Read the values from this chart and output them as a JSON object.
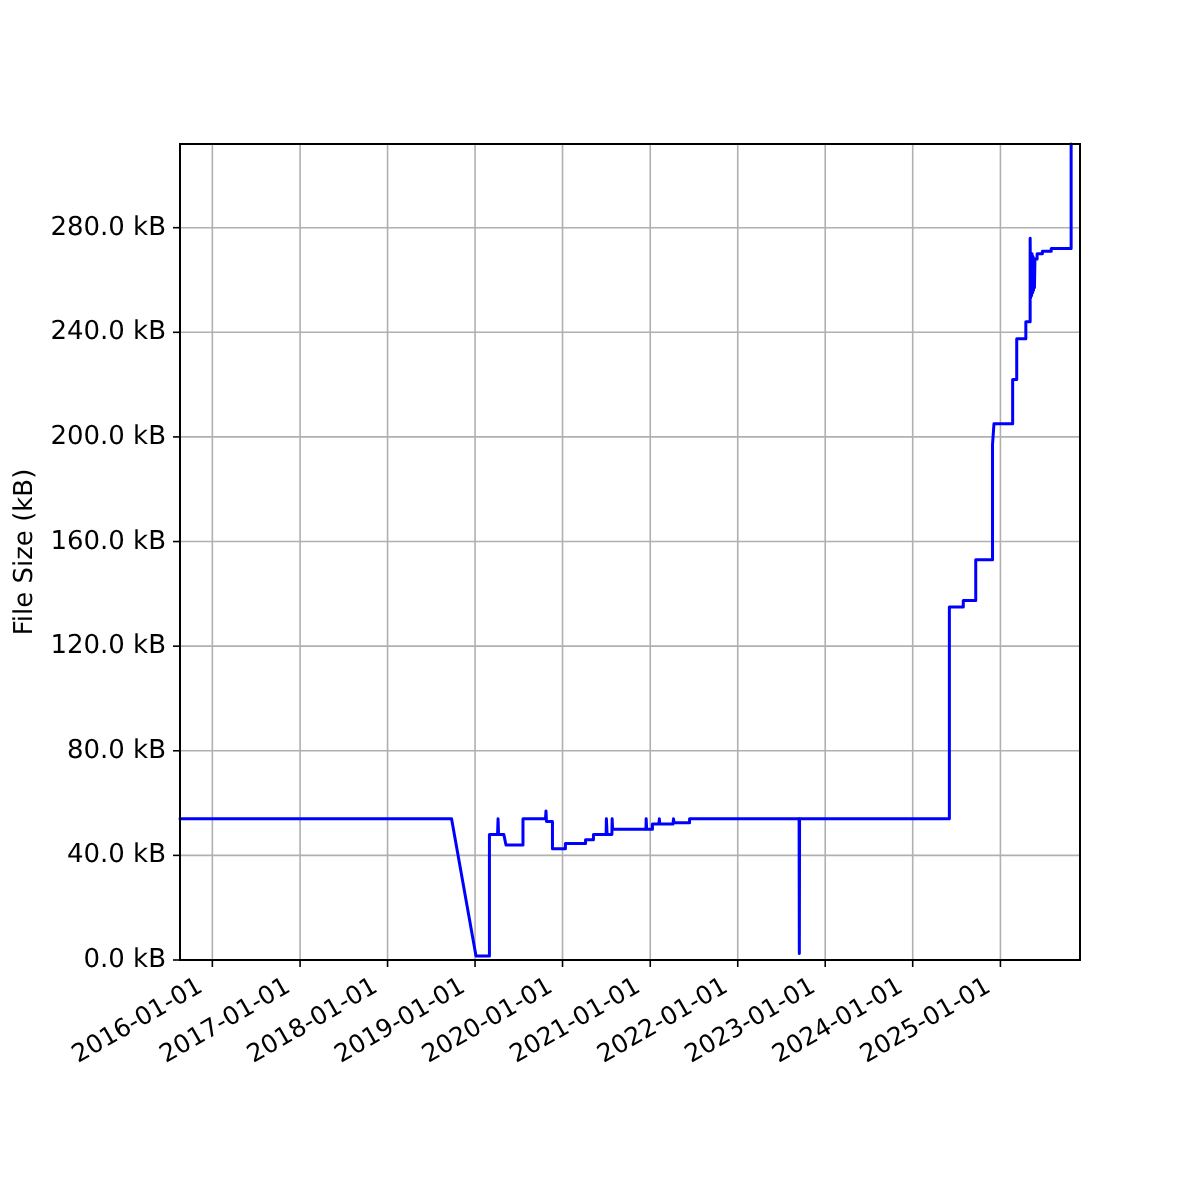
{
  "chart_data": {
    "type": "line",
    "ylabel": "File Size (kB)",
    "x": [
      "2015-08-19",
      "2018-09-25",
      "2019-01-05",
      "2019-03-02",
      "2019-03-02",
      "2019-04-05",
      "2019-04-07",
      "2019-04-09",
      "2019-05-01",
      "2019-05-10",
      "2019-07-20",
      "2019-07-20",
      "2019-10-22",
      "2019-10-24",
      "2019-10-26",
      "2019-11-20",
      "2019-11-20",
      "2020-01-13",
      "2020-01-13",
      "2020-04-06",
      "2020-04-06",
      "2020-05-09",
      "2020-05-09",
      "2020-07-01",
      "2020-07-02",
      "2020-07-05",
      "2020-07-25",
      "2020-07-26",
      "2020-07-28",
      "2020-12-14",
      "2020-12-15",
      "2020-12-17",
      "2021-01-10",
      "2021-01-10",
      "2021-02-06",
      "2021-02-08",
      "2021-02-10",
      "2021-04-06",
      "2021-04-08",
      "2021-04-10",
      "2021-06-14",
      "2021-06-14",
      "2022-09-14",
      "2022-09-15",
      "2022-09-16",
      "2024-06-02",
      "2024-06-02",
      "2024-07-30",
      "2024-07-30",
      "2024-09-20",
      "2024-09-20",
      "2024-11-29",
      "2024-11-29",
      "2024-12-05",
      "2025-02-21",
      "2025-02-21",
      "2025-03-10",
      "2025-03-10",
      "2025-04-17",
      "2025-04-17",
      "2025-05-05",
      "2025-05-05",
      "2025-05-07",
      "2025-05-09",
      "2025-05-11",
      "2025-05-13",
      "2025-05-15",
      "2025-05-17",
      "2025-05-19",
      "2025-05-21",
      "2025-05-23",
      "2025-05-25",
      "2025-06-03",
      "2025-06-03",
      "2025-06-25",
      "2025-06-25",
      "2025-08-01",
      "2025-08-01",
      "2025-10-23",
      "2025-10-23"
    ],
    "series": [
      {
        "color": "#0000ff",
        "values": [
          54,
          54,
          1.5,
          1.5,
          48,
          48,
          54,
          48,
          48,
          44,
          44,
          54,
          54,
          57,
          53,
          53,
          42.5,
          42.5,
          44.5,
          44.5,
          46,
          46,
          48,
          48,
          54,
          48,
          48,
          54,
          50,
          50,
          54,
          50,
          50,
          52,
          52,
          54,
          52,
          52,
          54,
          52.5,
          52.5,
          54,
          54,
          2.5,
          54,
          54,
          135,
          135,
          137.5,
          137.5,
          153,
          153,
          197,
          205,
          205,
          222,
          222,
          237.5,
          237.5,
          244,
          244,
          276,
          253,
          270,
          254,
          270,
          255,
          269,
          256,
          268,
          257,
          268,
          268,
          270,
          270,
          271,
          271,
          272,
          272,
          312
        ]
      }
    ],
    "xlim": [
      "2015-08-19",
      "2025-11-29"
    ],
    "xticks": [
      "2016-01-01",
      "2017-01-01",
      "2018-01-01",
      "2019-01-01",
      "2020-01-01",
      "2021-01-01",
      "2022-01-01",
      "2023-01-01",
      "2024-01-01",
      "2025-01-01"
    ],
    "ylim": [
      0,
      312
    ],
    "yticks": [
      {
        "value": 0,
        "label": "0.0 kB"
      },
      {
        "value": 40,
        "label": "40.0 kB"
      },
      {
        "value": 80,
        "label": "80.0 kB"
      },
      {
        "value": 120,
        "label": "120.0 kB"
      },
      {
        "value": 160,
        "label": "160.0 kB"
      },
      {
        "value": 200,
        "label": "200.0 kB"
      },
      {
        "value": 240,
        "label": "240.0 kB"
      },
      {
        "value": 280,
        "label": "280.0 kB"
      }
    ],
    "grid": true
  }
}
